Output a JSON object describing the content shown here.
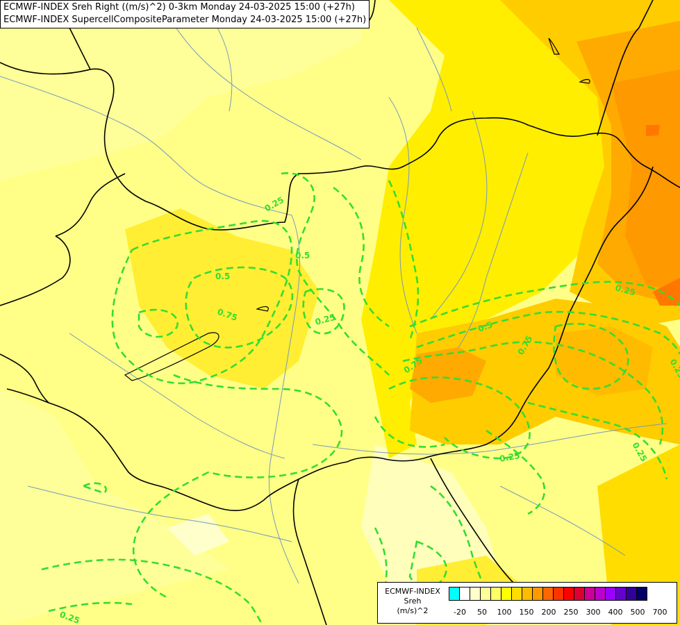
{
  "title": {
    "line1": "ECMWF-INDEX Sreh Right ((m/s)^2) 0-3km Monday 24-03-2025 15:00 (+27h)",
    "line2": "ECMWF-INDEX SupercellCompositeParameter Monday 24-03-2025 15:00 (+27h)"
  },
  "legend": {
    "line1": "ECMWF-INDEX",
    "line2": "Sreh",
    "line3": "(m/s)^2",
    "colors": [
      "#00ffff",
      "#ffffff",
      "#ffffcc",
      "#ffff99",
      "#ffff66",
      "#ffff00",
      "#ffdd00",
      "#ffbb00",
      "#ff9900",
      "#ff6600",
      "#ff3300",
      "#ff0000",
      "#dd0033",
      "#cc0099",
      "#bb00cc",
      "#9900ff",
      "#6600cc",
      "#330099",
      "#000066"
    ],
    "tick_labels": [
      "-20",
      "50",
      "100",
      "150",
      "200",
      "250",
      "300",
      "400",
      "500",
      "700"
    ]
  },
  "contour_labels": [
    {
      "text": "0.25"
    },
    {
      "text": "0.5"
    },
    {
      "text": "0.5"
    },
    {
      "text": "0.75"
    },
    {
      "text": "0.25"
    },
    {
      "text": "0.25"
    },
    {
      "text": "0.5"
    },
    {
      "text": "0.75"
    },
    {
      "text": "0.75"
    },
    {
      "text": "0.25"
    },
    {
      "text": "0.25"
    },
    {
      "text": "0.25"
    },
    {
      "text": "0.25"
    }
  ],
  "colors": {
    "contour": "#33dd33",
    "border": "#000000",
    "river": "#7799bb"
  }
}
